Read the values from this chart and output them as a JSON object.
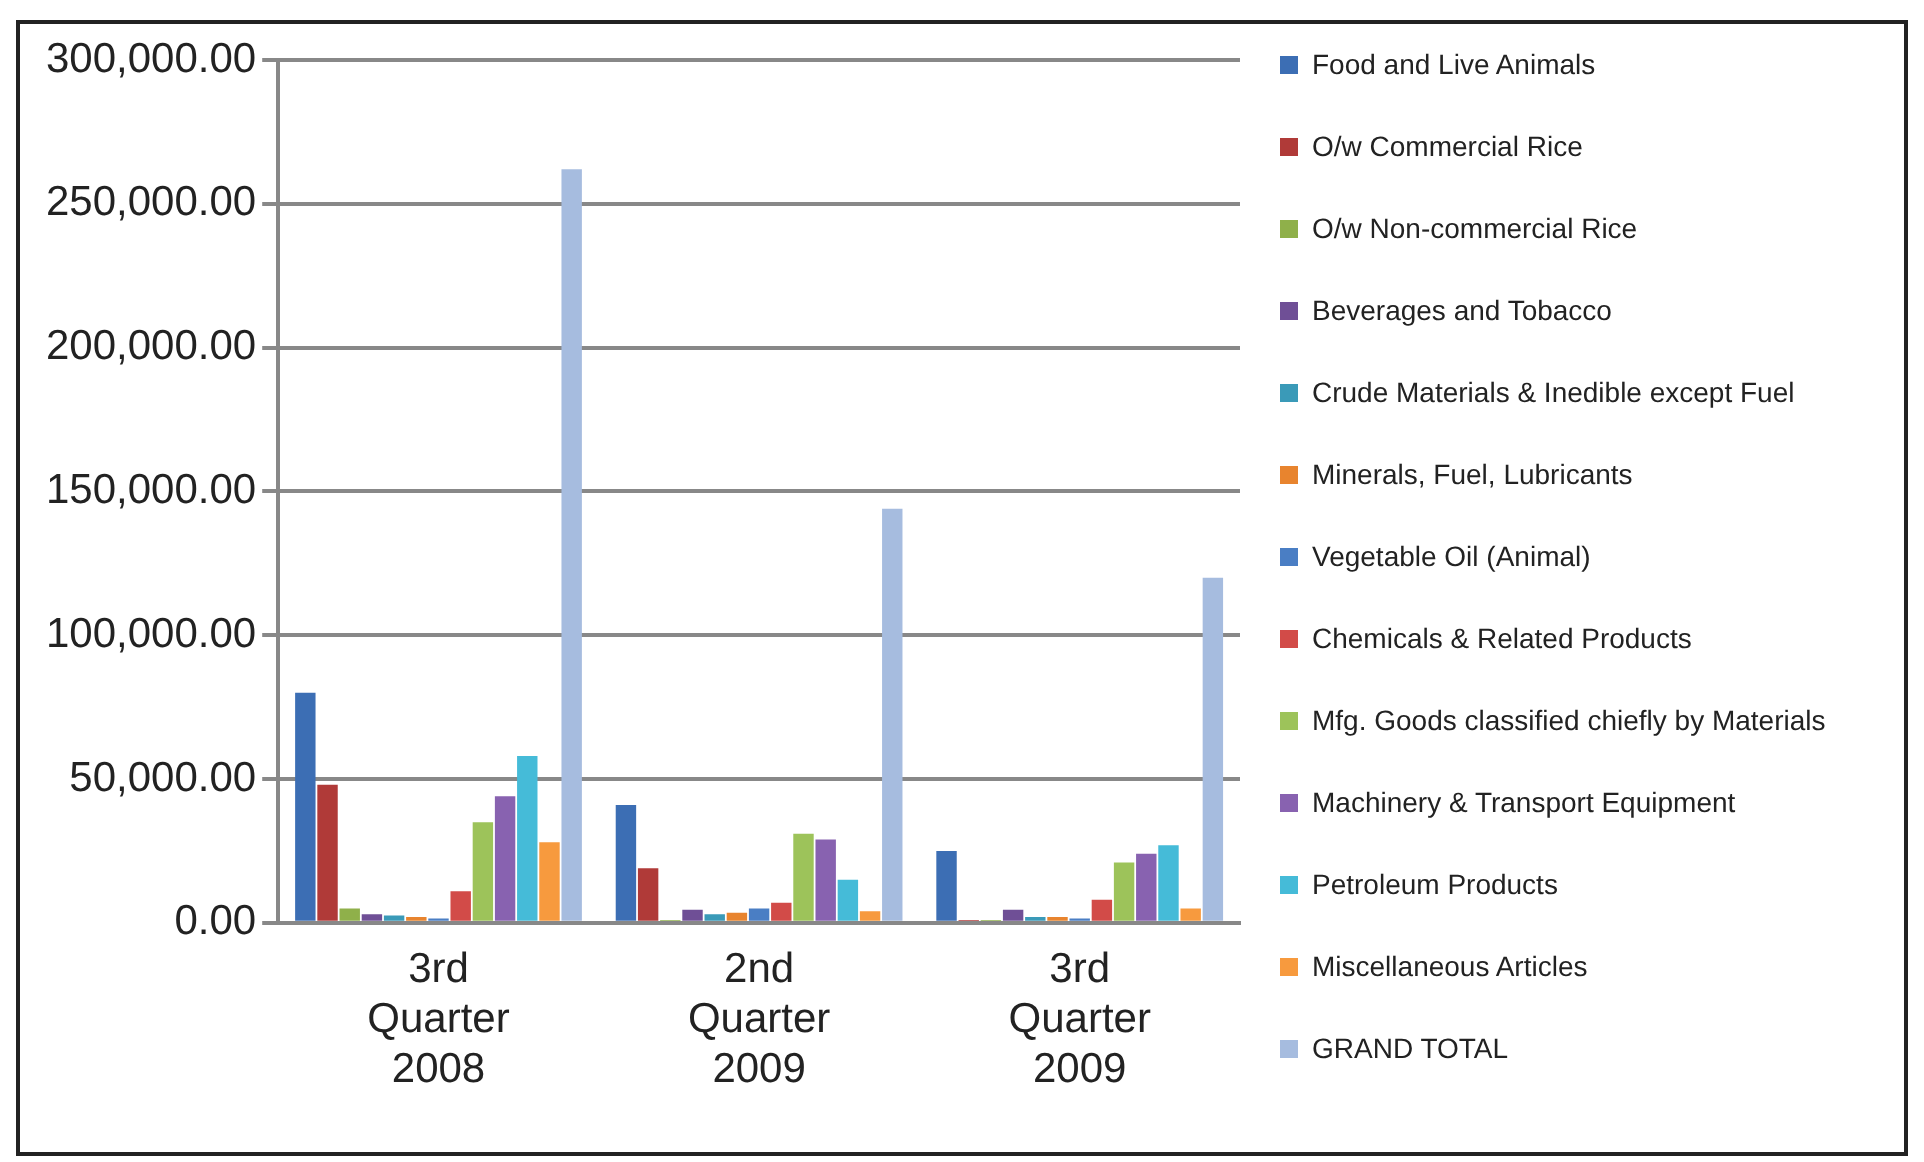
{
  "chart_data": {
    "type": "bar",
    "categories": [
      "3rd Quarter 2008",
      "2nd Quarter 2009",
      "3rd Quarter 2009"
    ],
    "ylim": [
      0,
      300000
    ],
    "yticks": [
      {
        "value": 0,
        "label": "0.00"
      },
      {
        "value": 50000,
        "label": "50,000.00"
      },
      {
        "value": 100000,
        "label": "100,000.00"
      },
      {
        "value": 150000,
        "label": "150,000.00"
      },
      {
        "value": 200000,
        "label": "200,000.00"
      },
      {
        "value": 250000,
        "label": "250,000.00"
      },
      {
        "value": 300000,
        "label": "300,000.00"
      }
    ],
    "grid": "y",
    "legend": "right",
    "series": [
      {
        "name": "Food and Live Animals",
        "color": "#3c6eb4",
        "values": [
          80000,
          41000,
          25000
        ]
      },
      {
        "name": "O/w Commercial Rice",
        "color": "#b03a38",
        "values": [
          48000,
          19000,
          1000
        ]
      },
      {
        "name": "O/w Non-commercial Rice",
        "color": "#8fb04a",
        "values": [
          5000,
          1000,
          1000
        ]
      },
      {
        "name": "Beverages and Tobacco",
        "color": "#6f4f96",
        "values": [
          3000,
          4500,
          4500
        ]
      },
      {
        "name": "Crude Materials & Inedible except Fuel",
        "color": "#3a9ab8",
        "values": [
          2500,
          3000,
          2000
        ]
      },
      {
        "name": "Minerals, Fuel, Lubricants",
        "color": "#e8842e",
        "values": [
          2000,
          3500,
          2000
        ]
      },
      {
        "name": "Vegetable Oil (Animal)",
        "color": "#4a7ec4",
        "values": [
          1500,
          5000,
          1500
        ]
      },
      {
        "name": "Chemicals & Related Products",
        "color": "#d24b48",
        "values": [
          11000,
          7000,
          8000
        ]
      },
      {
        "name": "Mfg. Goods classified  chiefly by Materials",
        "color": "#9dc35a",
        "values": [
          35000,
          31000,
          21000
        ]
      },
      {
        "name": "Machinery & Transport Equipment",
        "color": "#8862b0",
        "values": [
          44000,
          29000,
          24000
        ]
      },
      {
        "name": "Petroleum Products",
        "color": "#45bbd8",
        "values": [
          58000,
          15000,
          27000
        ]
      },
      {
        "name": "Miscellaneous Articles",
        "color": "#f79a3e",
        "values": [
          28000,
          4000,
          5000
        ]
      },
      {
        "name": "GRAND TOTAL",
        "color": "#a6bcdf",
        "values": [
          262000,
          144000,
          120000
        ]
      }
    ]
  }
}
